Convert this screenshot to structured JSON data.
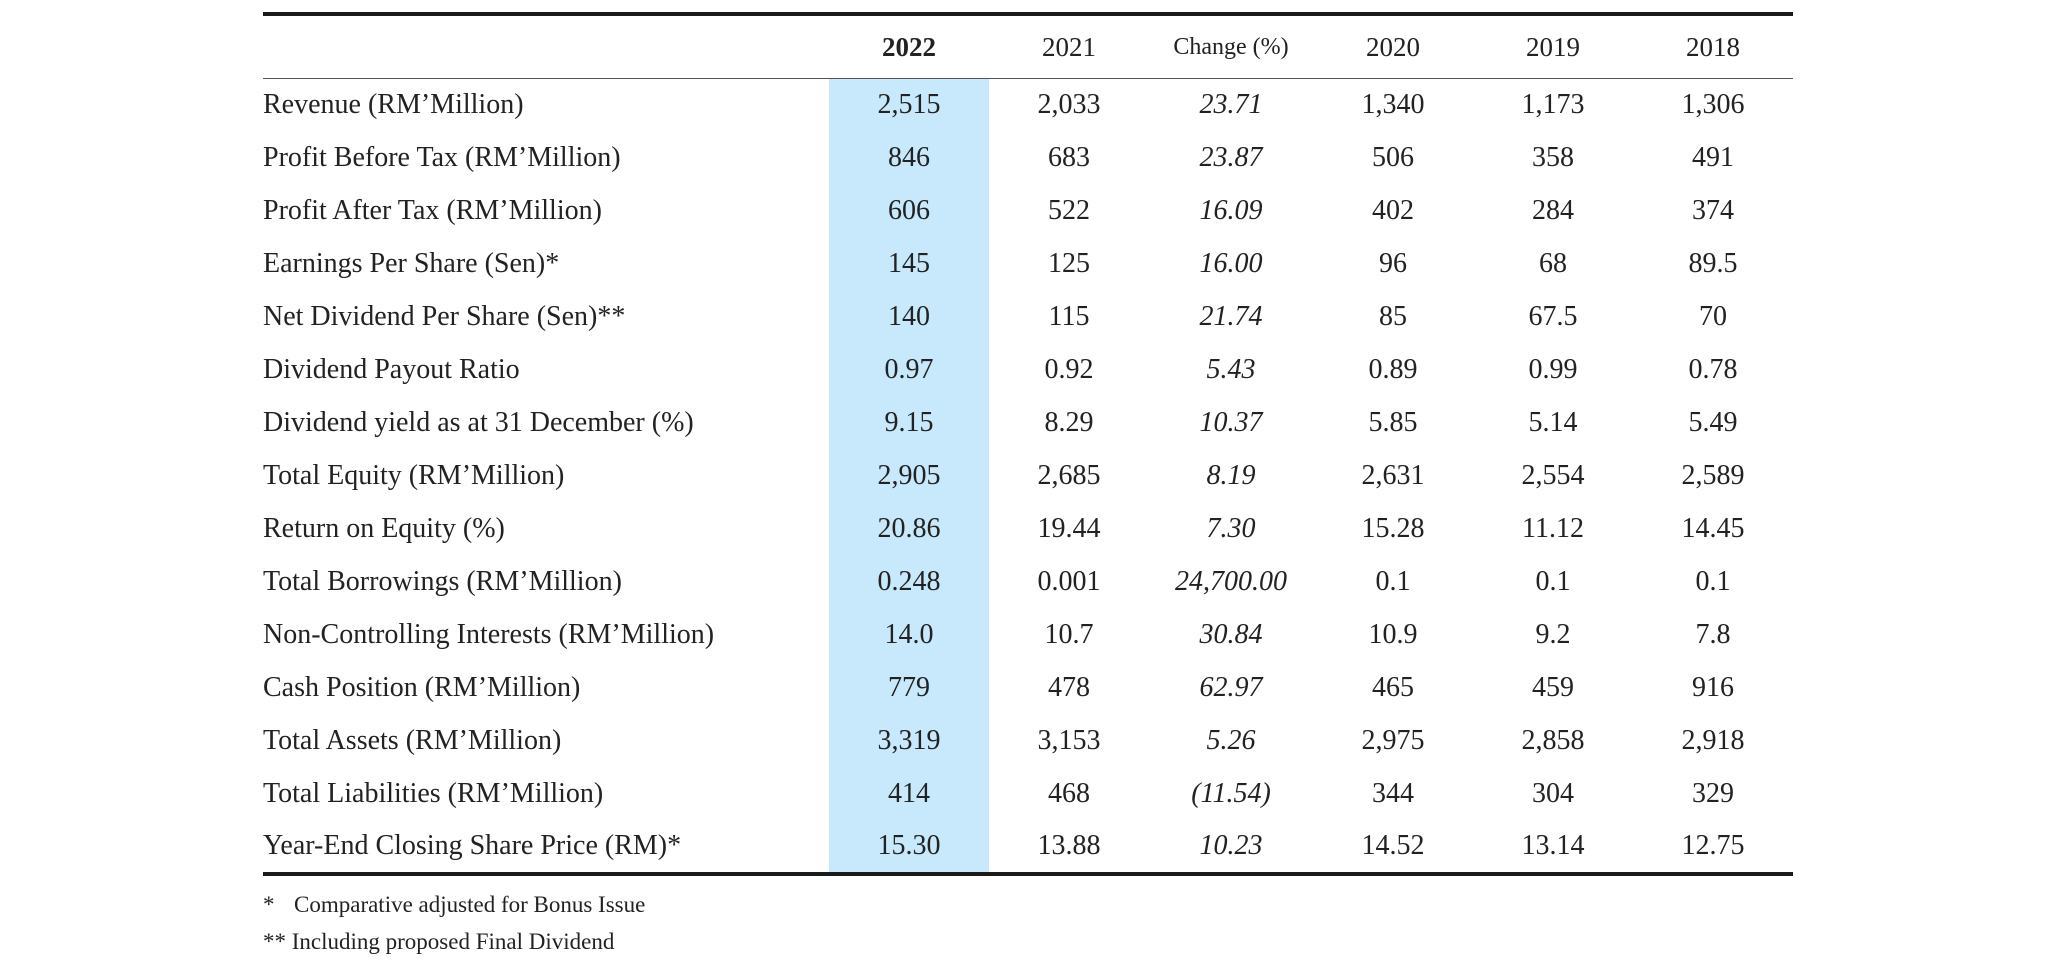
{
  "columns": {
    "label": "",
    "y2022": "2022",
    "y2021": "2021",
    "change": "Change (%)",
    "y2020": "2020",
    "y2019": "2019",
    "y2018": "2018"
  },
  "highlight_color": "#c8e9fb",
  "rows": [
    {
      "label": "Revenue  (RM’Million)",
      "y2022": "2,515",
      "y2021": "2,033",
      "change": "23.71",
      "y2020": "1,340",
      "y2019": "1,173",
      "y2018": "1,306"
    },
    {
      "label": "Profit Before Tax (RM’Million)",
      "y2022": "846",
      "y2021": "683",
      "change": "23.87",
      "y2020": "506",
      "y2019": "358",
      "y2018": "491"
    },
    {
      "label": "Profit After Tax (RM’Million)",
      "y2022": "606",
      "y2021": "522",
      "change": "16.09",
      "y2020": "402",
      "y2019": "284",
      "y2018": "374"
    },
    {
      "label": "Earnings Per Share (Sen)*",
      "y2022": "145",
      "y2021": "125",
      "change": "16.00",
      "y2020": "96",
      "y2019": "68",
      "y2018": "89.5"
    },
    {
      "label": "Net Dividend Per Share (Sen)**",
      "y2022": "140",
      "y2021": "115",
      "change": "21.74",
      "y2020": "85",
      "y2019": "67.5",
      "y2018": "70"
    },
    {
      "label": "Dividend Payout Ratio",
      "y2022": "0.97",
      "y2021": "0.92",
      "change": "5.43",
      "y2020": "0.89",
      "y2019": "0.99",
      "y2018": "0.78"
    },
    {
      "label": "Dividend yield as at 31 December (%)",
      "y2022": "9.15",
      "y2021": "8.29",
      "change": "10.37",
      "y2020": "5.85",
      "y2019": "5.14",
      "y2018": "5.49"
    },
    {
      "label": "Total Equity (RM’Million)",
      "y2022": "2,905",
      "y2021": "2,685",
      "change": "8.19",
      "y2020": "2,631",
      "y2019": "2,554",
      "y2018": "2,589"
    },
    {
      "label": "Return on Equity (%)",
      "y2022": "20.86",
      "y2021": "19.44",
      "change": "7.30",
      "y2020": "15.28",
      "y2019": "11.12",
      "y2018": "14.45"
    },
    {
      "label": "Total Borrowings (RM’Million)",
      "y2022": "0.248",
      "y2021": "0.001",
      "change": "24,700.00",
      "y2020": "0.1",
      "y2019": "0.1",
      "y2018": "0.1"
    },
    {
      "label": "Non-Controlling Interests (RM’Million)",
      "y2022": "14.0",
      "y2021": "10.7",
      "change": "30.84",
      "y2020": "10.9",
      "y2019": "9.2",
      "y2018": "7.8"
    },
    {
      "label": "Cash Position (RM’Million)",
      "y2022": "779",
      "y2021": "478",
      "change": "62.97",
      "y2020": "465",
      "y2019": "459",
      "y2018": "916"
    },
    {
      "label": "Total Assets (RM’Million)",
      "y2022": "3,319",
      "y2021": "3,153",
      "change": "5.26",
      "y2020": "2,975",
      "y2019": "2,858",
      "y2018": "2,918"
    },
    {
      "label": "Total Liabilities (RM’Million)",
      "y2022": "414",
      "y2021": "468",
      "change": "(11.54)",
      "y2020": "344",
      "y2019": "304",
      "y2018": "329"
    },
    {
      "label": "Year-End Closing Share Price (RM)*",
      "y2022": "15.30",
      "y2021": "13.88",
      "change": "10.23",
      "y2020": "14.52",
      "y2019": "13.14",
      "y2018": "12.75"
    }
  ],
  "notes": {
    "note1_mark": "*",
    "note1_text": "Comparative adjusted for Bonus Issue",
    "note2_text": "** Including proposed Final Dividend"
  }
}
